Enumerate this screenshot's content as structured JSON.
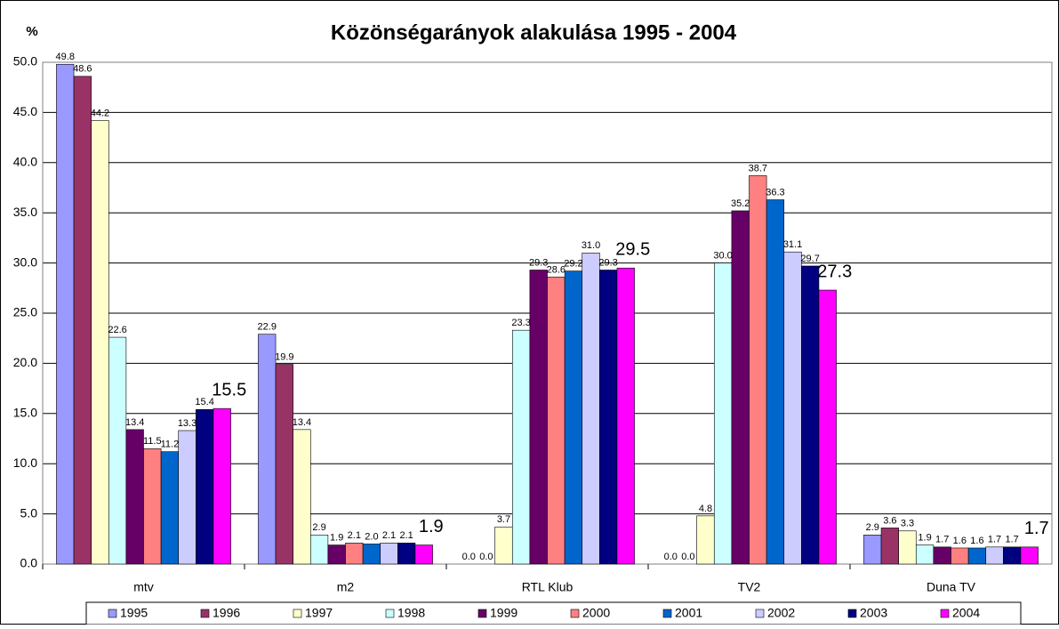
{
  "chart_data": {
    "type": "bar",
    "title": "Közönségarányok alakulása 1995 - 2004",
    "y_label": "%",
    "categories": [
      "mtv",
      "m2",
      "RTL Klub",
      "TV2",
      "Duna TV"
    ],
    "series": [
      {
        "name": "1995",
        "color": "#9999ff",
        "values": [
          49.8,
          22.9,
          0.0,
          0.0,
          2.9
        ],
        "value_labels": [
          "49.8",
          "22.9",
          "0.0",
          "0.0",
          "2.9"
        ]
      },
      {
        "name": "1996",
        "color": "#993366",
        "values": [
          48.6,
          19.9,
          0.0,
          0.0,
          3.6
        ],
        "value_labels": [
          "48.6",
          "19.9",
          "0.0",
          "0.0",
          "3.6"
        ]
      },
      {
        "name": "1997",
        "color": "#ffffcc",
        "values": [
          44.2,
          13.4,
          3.7,
          4.8,
          3.3
        ],
        "value_labels": [
          "44.2",
          "13.4",
          "3.7",
          "4.8",
          "3.3"
        ]
      },
      {
        "name": "1998",
        "color": "#ccffff",
        "values": [
          22.6,
          2.9,
          23.3,
          30.0,
          1.9
        ],
        "value_labels": [
          "22.6",
          "2.9",
          "23.3",
          "30.0",
          "1.9"
        ]
      },
      {
        "name": "1999",
        "color": "#660066",
        "values": [
          13.4,
          1.9,
          29.3,
          35.2,
          1.7
        ],
        "value_labels": [
          "13.4",
          "1.9",
          "29.3",
          "35.2",
          "1.7"
        ]
      },
      {
        "name": "2000",
        "color": "#ff8080",
        "values": [
          11.5,
          2.1,
          28.6,
          38.7,
          1.6
        ],
        "value_labels": [
          "11.5",
          "2.1",
          "28.6",
          "38.7",
          "1.6"
        ]
      },
      {
        "name": "2001",
        "color": "#0066cc",
        "values": [
          11.2,
          2.0,
          29.2,
          36.3,
          1.6
        ],
        "value_labels": [
          "11.2",
          "2.0",
          "29.2",
          "36.3",
          "1.6"
        ]
      },
      {
        "name": "2002",
        "color": "#ccccff",
        "values": [
          13.3,
          2.1,
          31.0,
          31.1,
          1.7
        ],
        "value_labels": [
          "13.3",
          "2.1",
          "31.0",
          "31.1",
          "1.7"
        ]
      },
      {
        "name": "2003",
        "color": "#000080",
        "values": [
          15.4,
          2.1,
          29.3,
          29.7,
          1.7
        ],
        "value_labels": [
          "15.4",
          "2.1",
          "29.3",
          "29.7",
          "1.7"
        ]
      },
      {
        "name": "2004",
        "color": "#ff00ff",
        "values": [
          15.5,
          1.9,
          29.5,
          27.3,
          1.7
        ],
        "value_labels": [
          "15.5",
          "1.9",
          "29.5",
          "27.3",
          "1.7"
        ]
      }
    ],
    "ylim": [
      0,
      50
    ],
    "yticks": [
      {
        "value": 0,
        "label": "0.0"
      },
      {
        "value": 5,
        "label": "5.0"
      },
      {
        "value": 10,
        "label": "10.0"
      },
      {
        "value": 15,
        "label": "15.0"
      },
      {
        "value": 20,
        "label": "20.0"
      },
      {
        "value": 25,
        "label": "25.0"
      },
      {
        "value": 30,
        "label": "30.0"
      },
      {
        "value": 35,
        "label": "35.0"
      },
      {
        "value": 40,
        "label": "40.0"
      },
      {
        "value": 45,
        "label": "45.0"
      },
      {
        "value": 50,
        "label": "50.0"
      }
    ],
    "grid": true,
    "legend": "bottom"
  }
}
